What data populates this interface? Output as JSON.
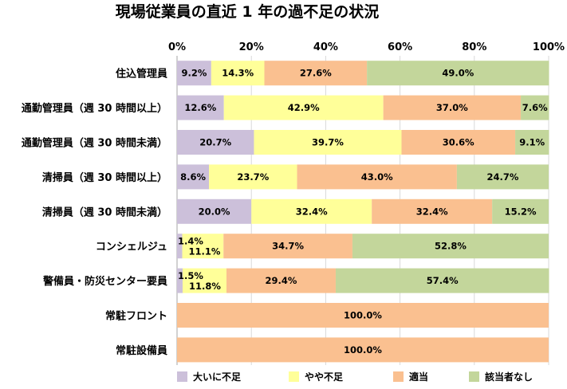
{
  "chart_data": {
    "type": "bar",
    "orientation": "horizontal",
    "stacked": true,
    "title": "現場従業員の直近 1 年の過不足の状況",
    "xlim": [
      0,
      100
    ],
    "x_ticks": [
      "0%",
      "20%",
      "40%",
      "60%",
      "80%",
      "100%"
    ],
    "tick_values": [
      0,
      20,
      40,
      60,
      80,
      100
    ],
    "grid": true,
    "legend_position": "bottom",
    "categories": [
      "住込管理員",
      "通勤管理員（週 30 時間以上）",
      "通勤管理員（週 30 時間未満）",
      "清掃員（週 30 時間以上）",
      "清掃員（週 30 時間未満）",
      "コンシェルジュ",
      "警備員・防災センター要員",
      "常駐フロント",
      "常駐設備員"
    ],
    "series": [
      {
        "name": "大いに不足",
        "color": "#ccc0da",
        "values": [
          9.2,
          12.6,
          20.7,
          8.6,
          20.0,
          1.4,
          1.5,
          0,
          0
        ],
        "labels": [
          "9.2%",
          "12.6%",
          "20.7%",
          "8.6%",
          "20.0%",
          "1.4%",
          "1.5%",
          "",
          ""
        ]
      },
      {
        "name": "やや不足",
        "color": "#ffff99",
        "values": [
          14.3,
          42.9,
          39.7,
          23.7,
          32.4,
          11.1,
          11.8,
          0,
          0
        ],
        "labels": [
          "14.3%",
          "42.9%",
          "39.7%",
          "23.7%",
          "32.4%",
          "11.1%",
          "11.8%",
          "",
          ""
        ]
      },
      {
        "name": "適当",
        "color": "#fac090",
        "values": [
          27.6,
          37.0,
          30.6,
          43.0,
          32.4,
          34.7,
          29.4,
          100.0,
          100.0
        ],
        "labels": [
          "27.6%",
          "37.0%",
          "30.6%",
          "43.0%",
          "32.4%",
          "34.7%",
          "29.4%",
          "100.0%",
          "100.0%"
        ]
      },
      {
        "name": "該当者なし",
        "color": "#c3d69b",
        "values": [
          49.0,
          7.6,
          9.1,
          24.7,
          15.2,
          52.8,
          57.4,
          0,
          0
        ],
        "labels": [
          "49.0%",
          "7.6%",
          "9.1%",
          "24.7%",
          "15.2%",
          "52.8%",
          "57.4%",
          "",
          ""
        ]
      }
    ]
  }
}
